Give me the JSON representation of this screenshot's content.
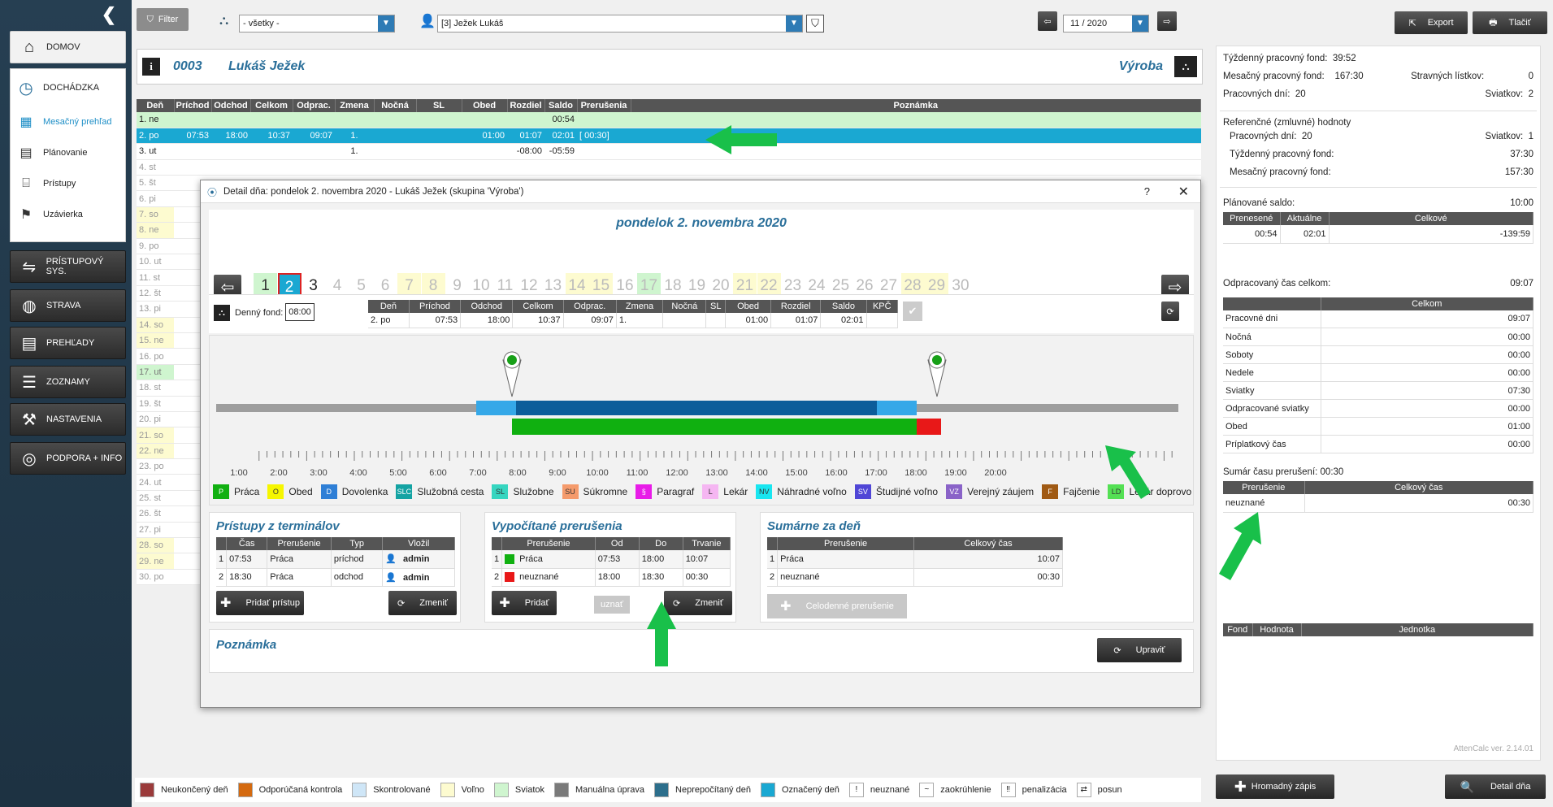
{
  "sidebar": {
    "items": [
      {
        "label": "DOMOV",
        "icon": "home-icon"
      },
      {
        "label": "DOCHÁDZKA",
        "icon": "clock-icon"
      },
      {
        "label": "PRÍSTUPOVÝ SYS.",
        "icon": "access-icon"
      },
      {
        "label": "STRAVA",
        "icon": "plate-icon"
      },
      {
        "label": "PREHĽADY",
        "icon": "book-icon"
      },
      {
        "label": "ZOZNAMY",
        "icon": "list-icon"
      },
      {
        "label": "NASTAVENIA",
        "icon": "tools-icon"
      },
      {
        "label": "PODPORA + INFO",
        "icon": "lifebuoy-icon"
      }
    ],
    "subitems": [
      "Mesačný prehľad",
      "Plánovanie",
      "Prístupy",
      "Uzávierka"
    ]
  },
  "toolbar": {
    "filter": "Filter",
    "group": "- všetky -",
    "employee": "[3] Ježek Lukáš",
    "month": "11 / 2020",
    "export": "Export",
    "print": "Tlačiť"
  },
  "header": {
    "id": "0003",
    "name": "Lukáš Ježek",
    "group": "Výroba"
  },
  "grid": {
    "columns": [
      "Deň",
      "Príchod",
      "Odchod",
      "Celkom",
      "Odprac.",
      "Zmena",
      "Nočná",
      "SL",
      "Obed",
      "Rozdiel",
      "Saldo",
      "Prerušenia",
      "Poznámka"
    ],
    "rows": [
      {
        "day": "1. ne",
        "c": [
          "",
          "",
          "",
          "",
          "",
          "",
          "",
          "",
          "",
          "00:54",
          ""
        ],
        "type": "holiday"
      },
      {
        "day": "2. po",
        "c": [
          "07:53",
          "18:00",
          "10:37",
          "09:07",
          "1.",
          "",
          "",
          "01:00",
          "01:07",
          "02:01",
          "[ 00:30]"
        ],
        "type": "selected"
      },
      {
        "day": "3. ut",
        "c": [
          "",
          "",
          "",
          "",
          "1.",
          "",
          "",
          "",
          "-08:00",
          "-05:59",
          ""
        ],
        "type": "normal"
      },
      {
        "day": "4. st",
        "c": [],
        "type": "normal"
      },
      {
        "day": "5. št",
        "c": [],
        "type": "normal"
      },
      {
        "day": "6. pi",
        "c": [],
        "type": "normal"
      },
      {
        "day": "7. so",
        "c": [],
        "type": "weekend"
      },
      {
        "day": "8. ne",
        "c": [],
        "type": "weekend"
      },
      {
        "day": "9. po",
        "c": [],
        "type": "normal"
      },
      {
        "day": "10. ut",
        "c": [],
        "type": "normal"
      },
      {
        "day": "11. st",
        "c": [],
        "type": "normal"
      },
      {
        "day": "12. št",
        "c": [],
        "type": "normal"
      },
      {
        "day": "13. pi",
        "c": [],
        "type": "normal"
      },
      {
        "day": "14. so",
        "c": [],
        "type": "weekend"
      },
      {
        "day": "15. ne",
        "c": [],
        "type": "weekend"
      },
      {
        "day": "16. po",
        "c": [],
        "type": "normal"
      },
      {
        "day": "17. ut",
        "c": [],
        "type": "holiday"
      },
      {
        "day": "18. st",
        "c": [],
        "type": "normal"
      },
      {
        "day": "19. št",
        "c": [],
        "type": "normal"
      },
      {
        "day": "20. pi",
        "c": [],
        "type": "normal"
      },
      {
        "day": "21. so",
        "c": [],
        "type": "weekend"
      },
      {
        "day": "22. ne",
        "c": [],
        "type": "weekend"
      },
      {
        "day": "23. po",
        "c": [],
        "type": "normal"
      },
      {
        "day": "24. ut",
        "c": [],
        "type": "normal"
      },
      {
        "day": "25. st",
        "c": [],
        "type": "normal"
      },
      {
        "day": "26. št",
        "c": [],
        "type": "normal"
      },
      {
        "day": "27. pi",
        "c": [],
        "type": "normal"
      },
      {
        "day": "28. so",
        "c": [],
        "type": "weekend"
      },
      {
        "day": "29. ne",
        "c": [],
        "type": "weekend"
      },
      {
        "day": "30. po",
        "c": [],
        "type": "normal"
      }
    ]
  },
  "right": {
    "r1": [
      "Týždenný pracovný fond:",
      "39:52"
    ],
    "r2": [
      "Mesačný pracovný fond:",
      "167:30",
      "Stravných lístkov:",
      "0"
    ],
    "r3": [
      "Pracovných dní:",
      "20",
      "Sviatkov:",
      "2"
    ],
    "ref_title": "Referenčné (zmluvné) hodnoty",
    "ref1": [
      "Pracovných dní:",
      "20",
      "Sviatkov:",
      "1"
    ],
    "ref2": [
      "Týždenný pracovný fond:",
      "37:30"
    ],
    "ref3": [
      "Mesačný pracovný fond:",
      "157:30"
    ],
    "planned": [
      "Plánované saldo:",
      "10:00"
    ],
    "saldo_cols": [
      "Prenesené",
      "Aktuálne",
      "Celkové"
    ],
    "saldo_vals": [
      "00:54",
      "02:01",
      "-139:59"
    ],
    "worked": [
      "Odpracovaný čas celkom:",
      "09:07"
    ],
    "worked_col": "Celkom",
    "worked_rows": [
      [
        "Pracovné dni",
        "09:07"
      ],
      [
        "Nočná",
        "00:00"
      ],
      [
        "Soboty",
        "00:00"
      ],
      [
        "Nedele",
        "00:00"
      ],
      [
        "Sviatky",
        "07:30"
      ],
      [
        "Odpracované sviatky",
        "00:00"
      ],
      [
        "Obed",
        "01:00"
      ],
      [
        "Príplatkový čas",
        "00:00"
      ]
    ],
    "breaks_title": "Sumár času prerušení: 00:30",
    "breaks_cols": [
      "Prerušenie",
      "Celkový čas"
    ],
    "breaks_rows": [
      [
        "neuznané",
        "00:30"
      ]
    ],
    "fund_cols": [
      "Fond",
      "Hodnota",
      "Jednotka"
    ],
    "version": "AttenCalc ver. 2.14.01",
    "bulk": "Hromadný zápis",
    "detail": "Detail dňa"
  },
  "legend": [
    {
      "label": "Neukončený deň",
      "color": "#9b3b3b"
    },
    {
      "label": "Odporúčaná kontrola",
      "color": "#d46a10"
    },
    {
      "label": "Skontrolované",
      "color": "#cfe6f7"
    },
    {
      "label": "Voľno",
      "color": "#fdfbd0"
    },
    {
      "label": "Sviatok",
      "color": "#cff5cf"
    },
    {
      "label": "Manuálna úprava",
      "color": "#7a7a7a"
    },
    {
      "label": "Neprepočítaný deň",
      "color": "#2d6f8c"
    },
    {
      "label": "Označený deň",
      "color": "#1aa8d2"
    }
  ],
  "legend_sym": [
    [
      "!",
      "neuznané"
    ],
    [
      "~",
      "zaokrúhlenie"
    ],
    [
      "‼",
      "penalizácia"
    ],
    [
      "⇄",
      "posun"
    ]
  ],
  "dialog": {
    "title": "Detail dňa: pondelok 2. novembra 2020 -  Lukáš Ježek  (skupina 'Výroba')",
    "help": "?",
    "close": "✕",
    "date": "pondelok 2. novembra 2020",
    "days": [
      "1",
      "2",
      "3",
      "4",
      "5",
      "6",
      "7",
      "8",
      "9",
      "10",
      "11",
      "12",
      "13",
      "14",
      "15",
      "16",
      "17",
      "18",
      "19",
      "20",
      "21",
      "22",
      "23",
      "24",
      "25",
      "26",
      "27",
      "28",
      "29",
      "30"
    ],
    "fund_label": "Denný fond:",
    "fund_value": "08:00",
    "cols": [
      "Deň",
      "Príchod",
      "Odchod",
      "Celkom",
      "Odprac.",
      "Zmena",
      "Nočná",
      "SL",
      "Obed",
      "Rozdiel",
      "Saldo",
      "KPČ"
    ],
    "vals": [
      "2. po",
      "07:53",
      "18:00",
      "10:37",
      "09:07",
      "1.",
      "",
      "",
      "01:00",
      "01:07",
      "02:01",
      ""
    ],
    "hours": [
      "1:00",
      "2:00",
      "3:00",
      "4:00",
      "5:00",
      "6:00",
      "7:00",
      "8:00",
      "9:00",
      "10:00",
      "11:00",
      "12:00",
      "13:00",
      "14:00",
      "15:00",
      "16:00",
      "17:00",
      "18:00",
      "19:00",
      "20:00"
    ],
    "types": [
      {
        "code": "P",
        "label": "Práca",
        "color": "#11b011"
      },
      {
        "code": "O",
        "label": "Obed",
        "color": "#f6f600"
      },
      {
        "code": "D",
        "label": "Dovolenka",
        "color": "#2f7fd6"
      },
      {
        "code": "SLC",
        "label": "Služobná cesta",
        "color": "#14a3a3"
      },
      {
        "code": "SL",
        "label": "Služobne",
        "color": "#36d6c0"
      },
      {
        "code": "SU",
        "label": "Súkromne",
        "color": "#f59b6c"
      },
      {
        "code": "§",
        "label": "Paragraf",
        "color": "#e81ce8"
      },
      {
        "code": "L",
        "label": "Lekár",
        "color": "#f5b6f2"
      },
      {
        "code": "NV",
        "label": "Náhradné voľno",
        "color": "#19e6f0"
      },
      {
        "code": "SV",
        "label": "Študijné voľno",
        "color": "#5046d6"
      },
      {
        "code": "VZ",
        "label": "Verejný záujem",
        "color": "#8a63c8"
      },
      {
        "code": "F",
        "label": "Fajčenie",
        "color": "#a05a14"
      },
      {
        "code": "LD",
        "label": "Lekár doprovod",
        "color": "#54e054"
      }
    ],
    "terminal": {
      "title": "Prístupy z terminálov",
      "cols": [
        "Čas",
        "Prerušenie",
        "Typ",
        "Vložil"
      ],
      "rows": [
        [
          "1",
          "07:53",
          "Práca",
          "príchod",
          "admin"
        ],
        [
          "2",
          "18:30",
          "Práca",
          "odchod",
          "admin"
        ]
      ],
      "add": "Pridať prístup",
      "change": "Zmeniť"
    },
    "calc": {
      "title": "Vypočítané prerušenia",
      "cols": [
        "Prerušenie",
        "Od",
        "Do",
        "Trvanie"
      ],
      "rows": [
        [
          "1",
          "Práca",
          "07:53",
          "18:00",
          "10:07"
        ],
        [
          "2",
          "neuznané",
          "18:00",
          "18:30",
          "00:30"
        ]
      ],
      "add": "Pridať",
      "accept": "uznať",
      "change": "Zmeniť"
    },
    "sum": {
      "title": "Sumárne za deň",
      "cols": [
        "Prerušenie",
        "Celkový čas"
      ],
      "rows": [
        [
          "1",
          "Práca",
          "10:07"
        ],
        [
          "2",
          "neuznané",
          "00:30"
        ]
      ],
      "allday": "Celodenné prerušenie"
    },
    "note": {
      "title": "Poznámka",
      "edit": "Upraviť"
    }
  }
}
